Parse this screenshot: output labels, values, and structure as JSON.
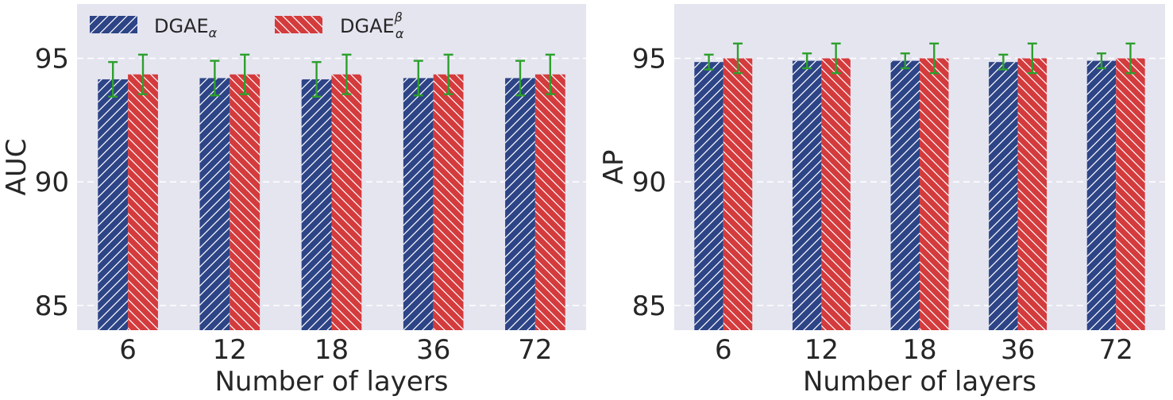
{
  "colors": {
    "axes_bg": "#e5e5f0",
    "grid": "#ffffff",
    "series_a": "#2d4486",
    "series_b": "#d43b3d",
    "error_bar": "#2ca02c",
    "hatch": "#ffffff"
  },
  "legend": {
    "placement": "top-left",
    "entries": [
      {
        "base": "DGAE",
        "sub": "α",
        "sup": ""
      },
      {
        "base": "DGAE",
        "sub": "α",
        "sup": "β"
      }
    ]
  },
  "chart_data": [
    {
      "type": "bar",
      "xlabel": "Number of layers",
      "ylabel": "AUC",
      "categories": [
        "6",
        "12",
        "18",
        "36",
        "72"
      ],
      "ylim": [
        84,
        97.2
      ],
      "yticks": [
        85,
        90,
        95
      ],
      "grid": true,
      "series": [
        {
          "values": [
            94.15,
            94.2,
            94.15,
            94.2,
            94.2
          ],
          "err": [
            0.7,
            0.7,
            0.7,
            0.7,
            0.7
          ]
        },
        {
          "values": [
            94.35,
            94.35,
            94.35,
            94.35,
            94.35
          ],
          "err": [
            0.8,
            0.8,
            0.8,
            0.8,
            0.8
          ]
        }
      ]
    },
    {
      "type": "bar",
      "xlabel": "Number of layers",
      "ylabel": "AP",
      "categories": [
        "6",
        "12",
        "18",
        "36",
        "72"
      ],
      "ylim": [
        84,
        97.2
      ],
      "yticks": [
        85,
        90,
        95
      ],
      "grid": true,
      "series": [
        {
          "values": [
            94.85,
            94.9,
            94.9,
            94.85,
            94.9
          ],
          "err": [
            0.3,
            0.3,
            0.3,
            0.3,
            0.3
          ]
        },
        {
          "values": [
            95.0,
            95.0,
            95.0,
            95.0,
            95.0
          ],
          "err": [
            0.6,
            0.6,
            0.6,
            0.6,
            0.6
          ]
        }
      ]
    }
  ]
}
